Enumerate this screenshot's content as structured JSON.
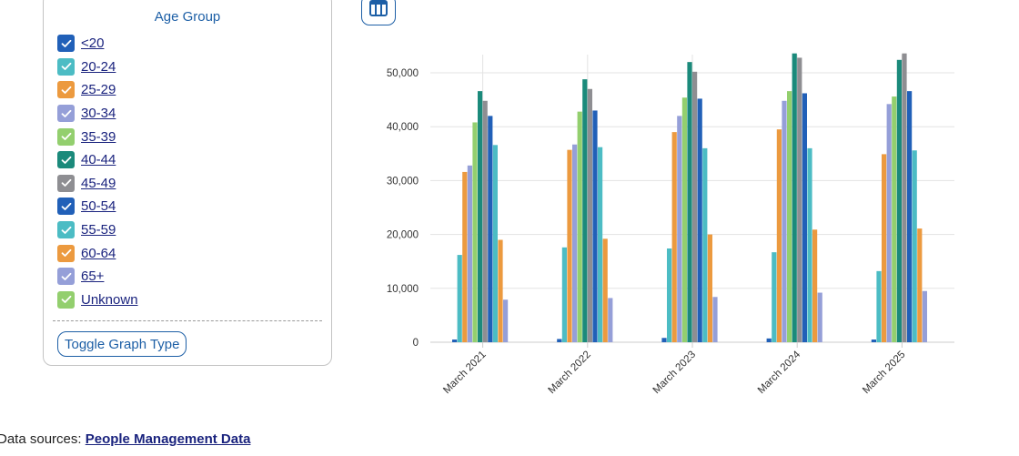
{
  "legend": {
    "title": "Age Group",
    "items": [
      {
        "label": "<20",
        "color": "#2160b8"
      },
      {
        "label": "20-24",
        "color": "#4cbcc4"
      },
      {
        "label": "25-29",
        "color": "#ec9a3f"
      },
      {
        "label": "30-34",
        "color": "#959fd8"
      },
      {
        "label": "35-39",
        "color": "#93cf6e"
      },
      {
        "label": "40-44",
        "color": "#1b8a7b"
      },
      {
        "label": "45-49",
        "color": "#8e8e92"
      },
      {
        "label": "50-54",
        "color": "#2160b8"
      },
      {
        "label": "55-59",
        "color": "#4cbcc4"
      },
      {
        "label": "60-64",
        "color": "#ec9a3f"
      },
      {
        "label": "65+",
        "color": "#959fd8"
      },
      {
        "label": "Unknown",
        "color": "#93cf6e"
      }
    ],
    "toggle_label": "Toggle Graph Type"
  },
  "table_button": {
    "icon": "table-icon",
    "color": "#1d5fa6"
  },
  "footer": {
    "prefix": "Data sources: ",
    "link": "People Management Data"
  },
  "chart_data": {
    "type": "bar",
    "categories": [
      "March 2021",
      "March 2022",
      "March 2023",
      "March 2024",
      "March 2025"
    ],
    "ylim": [
      0,
      55000
    ],
    "yticks": [
      0,
      10000,
      20000,
      30000,
      40000,
      50000
    ],
    "ytick_labels": [
      "0",
      "10,000",
      "20,000",
      "30,000",
      "40,000",
      "50,000"
    ],
    "grid": true,
    "series": [
      {
        "name": "<20",
        "color": "#2160b8",
        "values": [
          500,
          600,
          800,
          700,
          500
        ]
      },
      {
        "name": "20-24",
        "color": "#4cbcc4",
        "values": [
          16200,
          17600,
          17400,
          16700,
          13200
        ]
      },
      {
        "name": "25-29",
        "color": "#ec9a3f",
        "values": [
          31600,
          35700,
          39000,
          39500,
          34900
        ]
      },
      {
        "name": "30-34",
        "color": "#959fd8",
        "values": [
          32800,
          36700,
          42000,
          44800,
          44200
        ]
      },
      {
        "name": "35-39",
        "color": "#93cf6e",
        "values": [
          40800,
          42800,
          45400,
          46600,
          45600
        ]
      },
      {
        "name": "40-44",
        "color": "#1b8a7b",
        "values": [
          46600,
          48800,
          52000,
          53600,
          52400
        ]
      },
      {
        "name": "45-49",
        "color": "#8e8e92",
        "values": [
          44800,
          47000,
          50200,
          52800,
          53600
        ]
      },
      {
        "name": "50-54",
        "color": "#2160b8",
        "values": [
          42000,
          43000,
          45200,
          46200,
          46600
        ]
      },
      {
        "name": "55-59",
        "color": "#4cbcc4",
        "values": [
          36600,
          36200,
          36000,
          36000,
          35600
        ]
      },
      {
        "name": "60-64",
        "color": "#ec9a3f",
        "values": [
          19000,
          19200,
          20000,
          20900,
          21100
        ]
      },
      {
        "name": "65+",
        "color": "#959fd8",
        "values": [
          7900,
          8200,
          8400,
          9200,
          9500
        ]
      },
      {
        "name": "Unknown",
        "color": "#93cf6e",
        "values": [
          0,
          0,
          0,
          0,
          0
        ]
      }
    ]
  }
}
